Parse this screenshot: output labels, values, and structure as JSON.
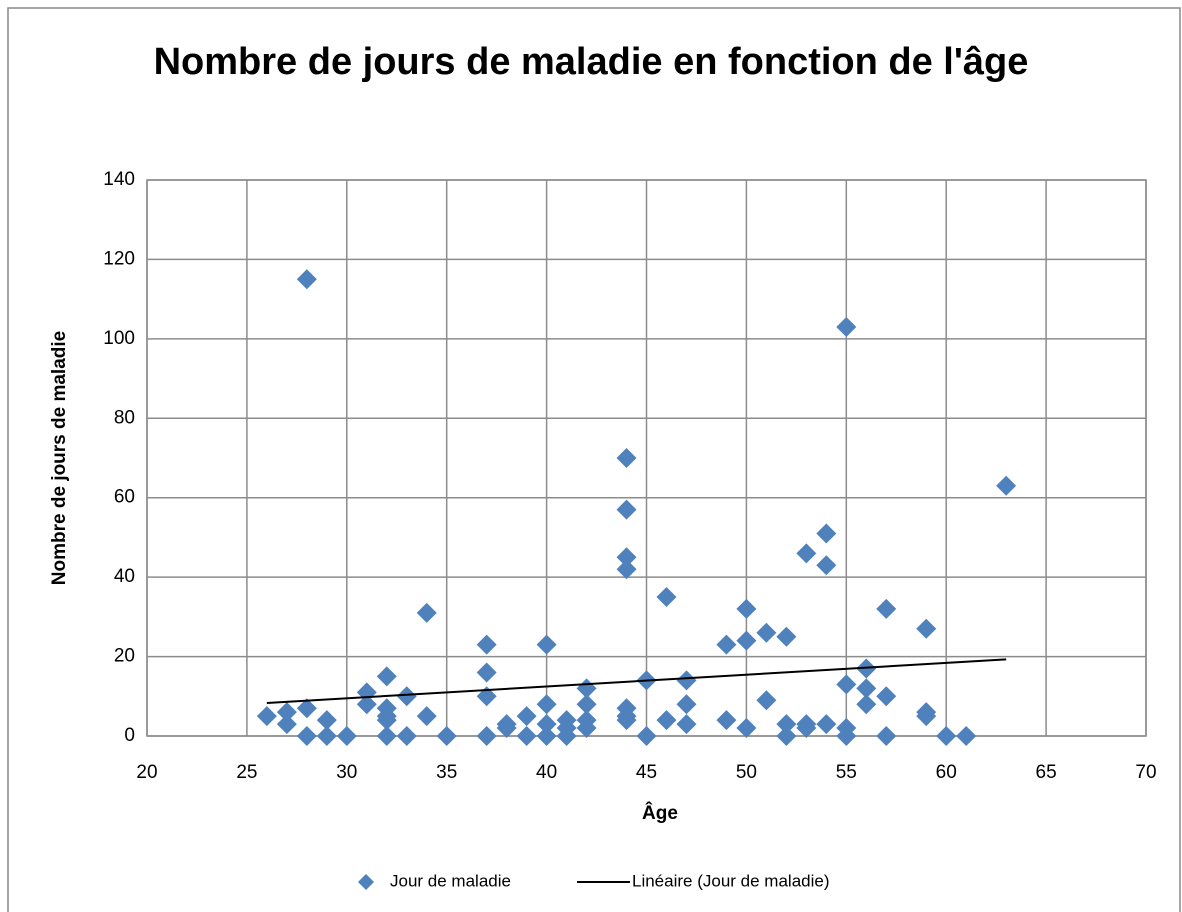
{
  "chart_data": {
    "type": "scatter",
    "title": "Nombre de jours de maladie en fonction de l'âge",
    "xlabel": "Âge",
    "ylabel": "Nombre de jours de maladie",
    "xlim": [
      20,
      70
    ],
    "xticks": [
      20,
      25,
      30,
      35,
      40,
      45,
      50,
      55,
      60,
      65,
      70
    ],
    "ylim": [
      0,
      140
    ],
    "yticks": [
      0,
      20,
      40,
      60,
      80,
      100,
      120,
      140
    ],
    "grid": true,
    "legend": "bottom",
    "series": [
      {
        "name": "Jour de maladie",
        "color": "#4f81bd",
        "x": [
          26,
          27,
          27,
          28,
          28,
          28,
          29,
          29,
          30,
          31,
          31,
          32,
          32,
          32,
          32,
          32,
          33,
          33,
          34,
          34,
          35,
          37,
          37,
          37,
          37,
          38,
          38,
          39,
          39,
          40,
          40,
          40,
          40,
          41,
          41,
          41,
          42,
          42,
          42,
          42,
          44,
          44,
          44,
          44,
          44,
          44,
          44,
          45,
          45,
          46,
          46,
          47,
          47,
          47,
          49,
          49,
          50,
          50,
          50,
          51,
          51,
          52,
          52,
          52,
          53,
          53,
          53,
          54,
          54,
          54,
          55,
          55,
          55,
          55,
          56,
          56,
          56,
          57,
          57,
          57,
          59,
          59,
          59,
          60,
          61,
          63
        ],
        "values": [
          5,
          6,
          3,
          115,
          7,
          0,
          4,
          0,
          0,
          11,
          8,
          15,
          7,
          5,
          4,
          0,
          10,
          0,
          31,
          5,
          0,
          23,
          16,
          10,
          0,
          3,
          2,
          5,
          0,
          23,
          8,
          3,
          0,
          4,
          2,
          0,
          12,
          8,
          4,
          2,
          70,
          57,
          45,
          42,
          7,
          5,
          4,
          14,
          0,
          35,
          4,
          14,
          8,
          3,
          23,
          4,
          32,
          24,
          2,
          26,
          9,
          25,
          3,
          0,
          46,
          3,
          2,
          51,
          43,
          3,
          103,
          13,
          2,
          0,
          17,
          12,
          8,
          32,
          10,
          0,
          27,
          6,
          5,
          0,
          0,
          63
        ]
      }
    ],
    "trendline": {
      "name": "Linéaire (Jour de maladie)",
      "color": "#000000",
      "x": [
        26,
        63
      ],
      "values": [
        8.3,
        19.3
      ]
    }
  }
}
